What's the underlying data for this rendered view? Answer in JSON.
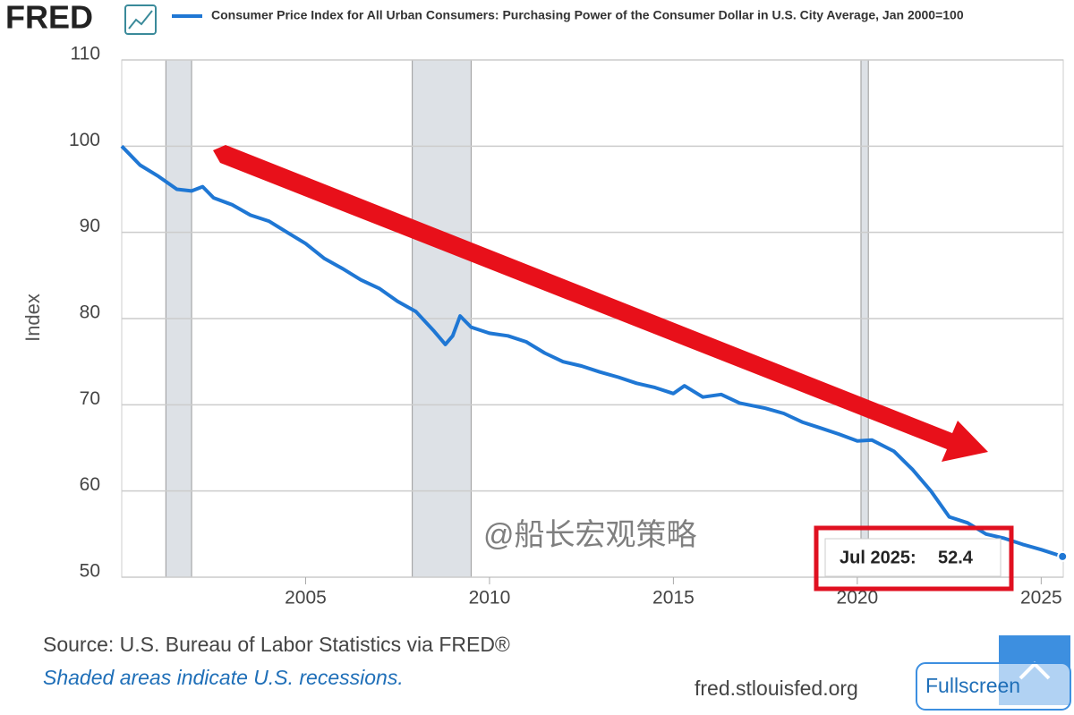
{
  "header": {
    "logo": "FRED",
    "title": "Consumer Price Index for All Urban Consumers: Purchasing Power of the Consumer Dollar in U.S. City Average, Jan 2000=100"
  },
  "chart_data": {
    "type": "line",
    "y_label": "Index",
    "x": [
      2000.0,
      2000.5,
      2001.0,
      2001.5,
      2001.9,
      2002.2,
      2002.5,
      2003.0,
      2003.5,
      2004.0,
      2004.5,
      2005.0,
      2005.5,
      2006.0,
      2006.5,
      2007.0,
      2007.5,
      2008.0,
      2008.5,
      2008.8,
      2009.0,
      2009.2,
      2009.5,
      2010.0,
      2010.5,
      2011.0,
      2011.5,
      2012.0,
      2012.5,
      2013.0,
      2013.5,
      2014.0,
      2014.5,
      2015.0,
      2015.3,
      2015.8,
      2016.3,
      2016.8,
      2017.5,
      2018.0,
      2018.5,
      2019.0,
      2019.5,
      2020.0,
      2020.4,
      2021.0,
      2021.5,
      2022.0,
      2022.5,
      2023.0,
      2023.5,
      2024.0,
      2024.5,
      2025.0,
      2025.58
    ],
    "series": [
      {
        "name": "Consumer Price Index for All Urban Consumers: Purchasing Power of the Consumer Dollar in U.S. City Average, Jan 2000=100",
        "color": "#1f77d4",
        "values": [
          100,
          97.8,
          96.5,
          95.0,
          94.8,
          95.3,
          94.0,
          93.2,
          92.0,
          91.3,
          90.0,
          88.7,
          87.0,
          85.8,
          84.5,
          83.5,
          82.0,
          80.8,
          78.5,
          77.0,
          78.0,
          80.3,
          79.0,
          78.3,
          78.0,
          77.3,
          76.0,
          75.0,
          74.5,
          73.8,
          73.2,
          72.5,
          72.0,
          71.3,
          72.2,
          70.9,
          71.2,
          70.2,
          69.6,
          69.0,
          68.0,
          67.3,
          66.6,
          65.8,
          65.9,
          64.6,
          62.5,
          60.0,
          57.0,
          56.3,
          55.0,
          54.5,
          53.8,
          53.2,
          52.4
        ]
      }
    ],
    "recessions": [
      [
        2001.2,
        2001.9
      ],
      [
        2007.9,
        2009.5
      ],
      [
        2020.1,
        2020.3
      ]
    ],
    "xlim": [
      2000,
      2025.6
    ],
    "xticks": [
      2005,
      2010,
      2015,
      2020,
      2025
    ],
    "ylim": [
      50,
      110
    ],
    "yticks": [
      50,
      60,
      70,
      80,
      90,
      100,
      110
    ],
    "grid": true,
    "tooltip": {
      "label": "Jul 2025:",
      "value": 52.4
    },
    "watermark": "@船长宏观策略"
  },
  "footer": {
    "source": "Source: U.S. Bureau of Labor Statistics via FRED®",
    "note": "Shaded areas indicate U.S. recessions.",
    "url": "fred.stlouisfed.org",
    "button": "Fullscreen"
  }
}
